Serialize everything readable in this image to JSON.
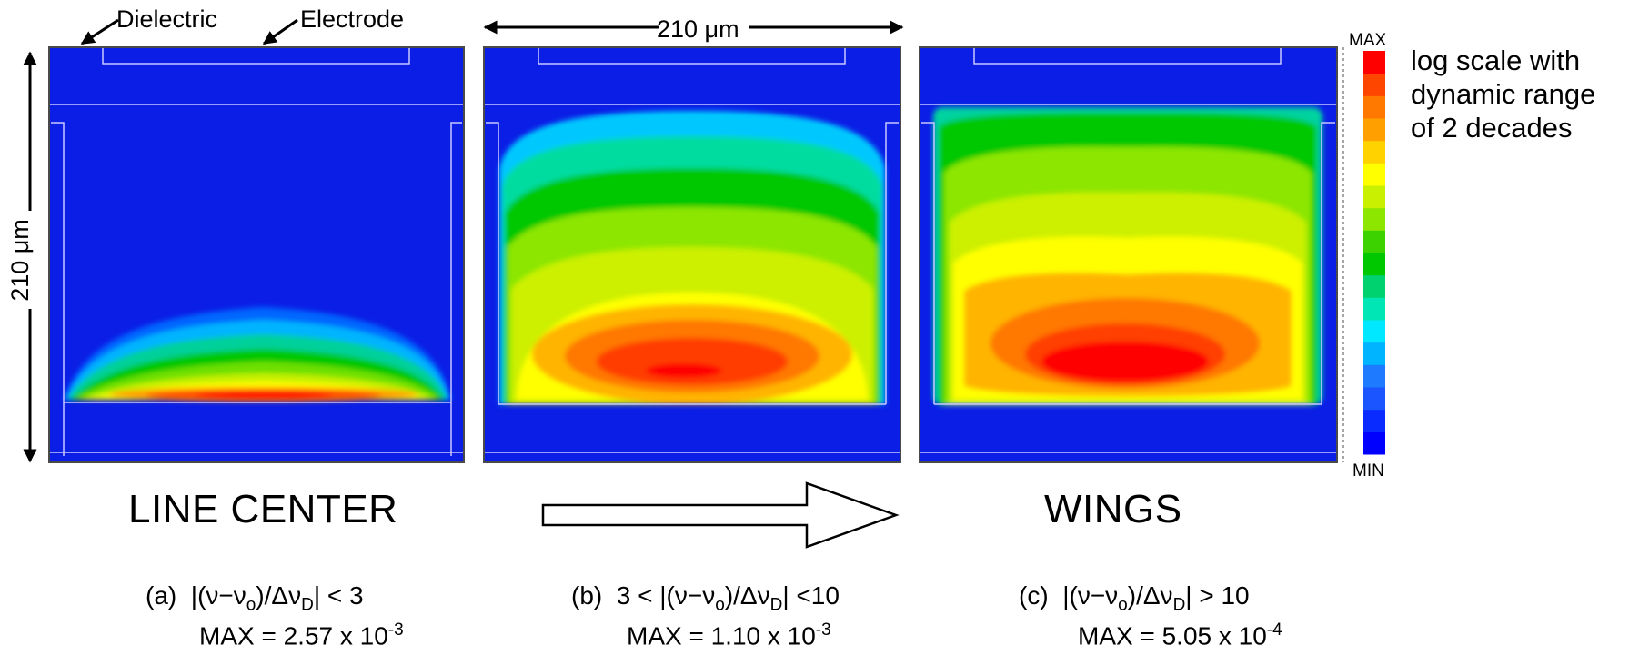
{
  "annotations": {
    "dielectric": "Dielectric",
    "electrode": "Electrode",
    "width_dim": "210 μm",
    "height_dim": "210 μm"
  },
  "colorbar": {
    "max_label": "MAX",
    "min_label": "MIN",
    "note": [
      "log scale with",
      "dynamic range",
      "of 2 decades"
    ],
    "colors": [
      "#0000ff",
      "#0a2bff",
      "#1a55ff",
      "#1e7bff",
      "#00b4ff",
      "#00e8ff",
      "#00e6b4",
      "#00d270",
      "#00c800",
      "#3cd200",
      "#8ce600",
      "#c8f000",
      "#ffff00",
      "#ffd200",
      "#ffa000",
      "#ff7800",
      "#ff4600",
      "#ff0000"
    ]
  },
  "labels": {
    "line_center": "LINE CENTER",
    "wings": "WINGS"
  },
  "panels": [
    {
      "letter": "(a)",
      "cond_pre": "",
      "cond_main": "|(ν−ν",
      "cond_sub1": "o",
      "cond_mid": ")/Δν",
      "cond_sub2": "D",
      "cond_post": "| < 3",
      "max_text": "MAX = 2.57 x 10",
      "max_exp": "-3"
    },
    {
      "letter": "(b)",
      "cond_pre": "3 < ",
      "cond_main": "|(ν−ν",
      "cond_sub1": "o",
      "cond_mid": ")/Δν",
      "cond_sub2": "D",
      "cond_post": "| <10",
      "max_text": "MAX = 1.10 x 10",
      "max_exp": "-3"
    },
    {
      "letter": "(c)",
      "cond_pre": "",
      "cond_main": "|(ν−ν",
      "cond_sub1": "o",
      "cond_mid": ")/Δν",
      "cond_sub2": "D",
      "cond_post": "| > 10",
      "max_text": "MAX = 5.05 x 10",
      "max_exp": "-4"
    }
  ]
}
